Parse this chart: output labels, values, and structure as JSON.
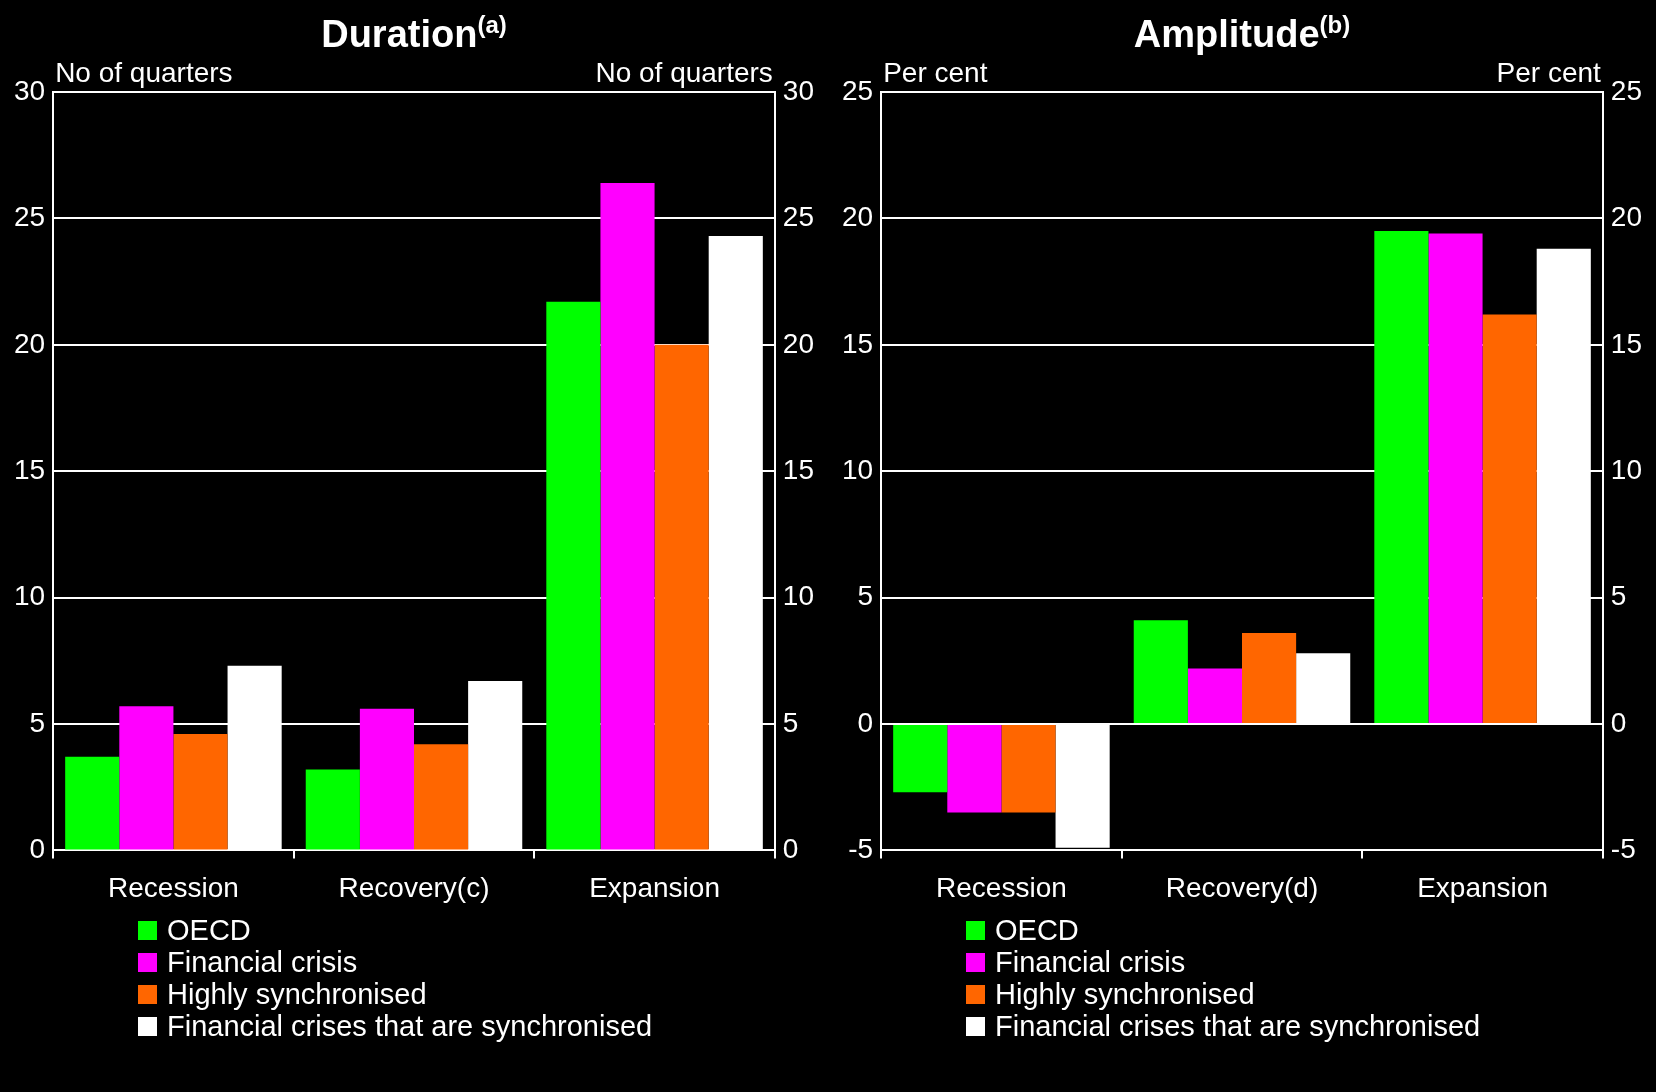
{
  "chart_data": [
    {
      "type": "bar",
      "title": "Duration$^{(a)}$",
      "ylabel": "No of quarters",
      "y2label": "No of quarters",
      "categories": [
        "Recession",
        "Recovery(c)",
        "Expansion"
      ],
      "series": [
        {
          "name": "OECD",
          "color": "#00ff00",
          "values": [
            3.7,
            3.2,
            21.7
          ]
        },
        {
          "name": "Financial crisis",
          "color": "#ff00ff",
          "values": [
            5.7,
            5.6,
            26.4
          ]
        },
        {
          "name": "Highly synchronised",
          "color": "#ff6600",
          "values": [
            4.6,
            4.2,
            20.0
          ]
        },
        {
          "name": "Financial crises that are synchronised",
          "color": "#ffffff",
          "values": [
            7.3,
            6.7,
            24.3
          ]
        }
      ],
      "ylim": [
        0,
        30
      ],
      "yticks": [
        0,
        5,
        10,
        15,
        20,
        25,
        30
      ],
      "y2lim": [
        0,
        30
      ],
      "y2ticks": [
        0,
        5,
        10,
        15,
        20,
        25,
        30
      ],
      "grid": "y",
      "legend": "bottom"
    },
    {
      "type": "bar",
      "title": "Amplitude$^{(b)}$",
      "ylabel": "Per cent",
      "y2label": "Per cent",
      "categories": [
        "Recession",
        "Recovery(d)",
        "Expansion"
      ],
      "series": [
        {
          "name": "OECD",
          "color": "#00ff00",
          "values": [
            -2.7,
            4.1,
            19.5
          ]
        },
        {
          "name": "Financial crisis",
          "color": "#ff00ff",
          "values": [
            -3.5,
            2.2,
            19.4
          ]
        },
        {
          "name": "Highly synchronised",
          "color": "#ff6600",
          "values": [
            -3.5,
            3.6,
            16.2
          ]
        },
        {
          "name": "Financial crises that are synchronised",
          "color": "#ffffff",
          "values": [
            -4.9,
            2.8,
            18.8
          ]
        }
      ],
      "ylim": [
        -5,
        25
      ],
      "yticks": [
        -5,
        0,
        5,
        10,
        15,
        20,
        25
      ],
      "y2lim": [
        -5,
        25
      ],
      "y2ticks": [
        -5,
        0,
        5,
        10,
        15,
        20,
        25
      ],
      "grid": "y",
      "legend": "bottom"
    }
  ]
}
